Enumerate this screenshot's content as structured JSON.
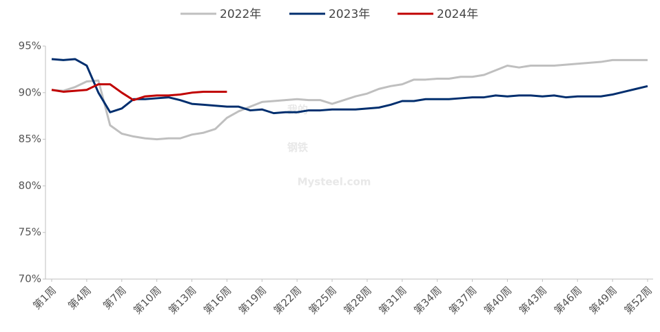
{
  "chart_data": {
    "type": "line",
    "watermark": [
      "我的",
      "钢铁",
      "Mysteel.com"
    ],
    "categories": [
      "第1周",
      null,
      null,
      "第4周",
      null,
      null,
      "第7周",
      null,
      null,
      "第10周",
      null,
      null,
      "第13周",
      null,
      null,
      "第16周",
      null,
      null,
      "第19周",
      null,
      null,
      "第22周",
      null,
      null,
      "第25周",
      null,
      null,
      "第28周",
      null,
      null,
      "第31周",
      null,
      null,
      "第34周",
      null,
      null,
      "第37周",
      null,
      null,
      "第40周",
      null,
      null,
      "第43周",
      null,
      null,
      "第46周",
      null,
      null,
      "第49周",
      null,
      null,
      "第52周"
    ],
    "series": [
      {
        "name": "2022年",
        "color": "#bfbfbf",
        "values": [
          90.3,
          90.2,
          90.6,
          91.2,
          91.3,
          86.5,
          85.6,
          85.3,
          85.1,
          85.0,
          85.1,
          85.1,
          85.5,
          85.7,
          86.1,
          87.3,
          88.0,
          88.5,
          89.0,
          89.1,
          89.2,
          89.3,
          89.2,
          89.2,
          88.8,
          89.2,
          89.6,
          89.9,
          90.4,
          90.7,
          90.9,
          91.4,
          91.4,
          91.5,
          91.5,
          91.7,
          91.7,
          91.9,
          92.4,
          92.9,
          92.7,
          92.9,
          92.9,
          92.9,
          93.0,
          93.1,
          93.2,
          93.3,
          93.5,
          93.5,
          93.5,
          93.5
        ]
      },
      {
        "name": "2023年",
        "color": "#002e6e",
        "values": [
          93.6,
          93.5,
          93.6,
          92.9,
          90.0,
          87.9,
          88.3,
          89.3,
          89.3,
          89.4,
          89.5,
          89.2,
          88.8,
          88.7,
          88.6,
          88.5,
          88.5,
          88.1,
          88.2,
          87.8,
          87.9,
          87.9,
          88.1,
          88.1,
          88.2,
          88.2,
          88.2,
          88.3,
          88.4,
          88.7,
          89.1,
          89.1,
          89.3,
          89.3,
          89.3,
          89.4,
          89.5,
          89.5,
          89.7,
          89.6,
          89.7,
          89.7,
          89.6,
          89.7,
          89.5,
          89.6,
          89.6,
          89.6,
          89.8,
          90.1,
          90.4,
          90.7
        ]
      },
      {
        "name": "2024年",
        "color": "#c00000",
        "values": [
          90.3,
          90.1,
          90.2,
          90.3,
          90.9,
          90.9,
          90.0,
          89.2,
          89.6,
          89.7,
          89.7,
          89.8,
          90.0,
          90.1,
          90.1,
          90.1,
          null,
          null,
          null,
          null,
          null,
          null,
          null,
          null,
          null,
          null,
          null,
          null,
          null,
          null,
          null,
          null,
          null,
          null,
          null,
          null,
          null,
          null,
          null,
          null,
          null,
          null,
          null,
          null,
          null,
          null,
          null,
          null,
          null,
          null,
          null,
          null
        ]
      }
    ],
    "ylim": [
      70,
      95
    ],
    "yticks": [
      {
        "value": 70,
        "label": "70%"
      },
      {
        "value": 75,
        "label": "75%"
      },
      {
        "value": 80,
        "label": "80%"
      },
      {
        "value": 85,
        "label": "85%"
      },
      {
        "value": 90,
        "label": "90%"
      },
      {
        "value": 95,
        "label": "95%"
      }
    ],
    "legend": "top"
  }
}
